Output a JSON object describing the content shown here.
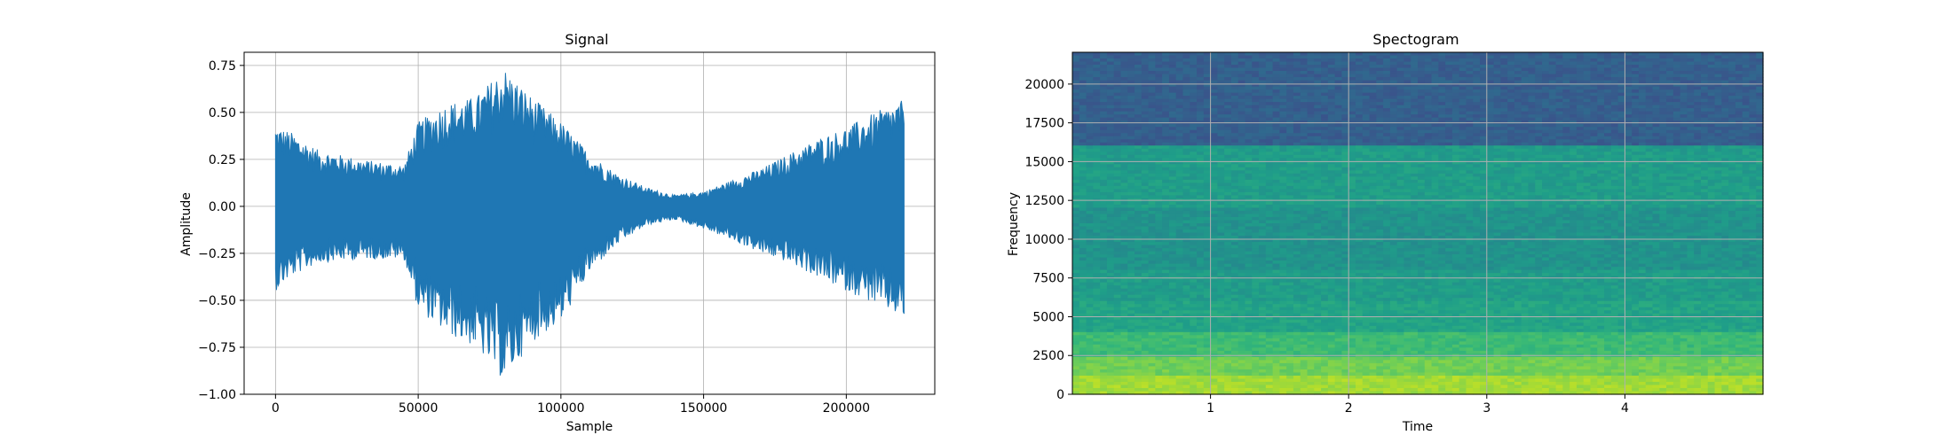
{
  "chart_data": [
    {
      "type": "line",
      "title": "Signal",
      "xlabel": "Sample",
      "ylabel": "Amplitude",
      "xlim": [
        -11000,
        231000
      ],
      "ylim": [
        -1.0,
        0.82
      ],
      "xticks": [
        0,
        50000,
        100000,
        150000,
        200000
      ],
      "xtick_labels": [
        "0",
        "50000",
        "100000",
        "150000",
        "200000"
      ],
      "yticks": [
        -1.0,
        -0.75,
        -0.5,
        -0.25,
        0.0,
        0.25,
        0.5,
        0.75
      ],
      "ytick_labels": [
        "−1.00",
        "−0.75",
        "−0.50",
        "−0.25",
        "0.00",
        "0.25",
        "0.50",
        "0.75"
      ],
      "grid": true,
      "color": "#1f77b4",
      "n_samples": 220500,
      "envelope": {
        "x": [
          0,
          5000,
          15000,
          30000,
          45000,
          50000,
          60000,
          70000,
          80000,
          90000,
          100000,
          110000,
          120000,
          130000,
          140000,
          150000,
          160000,
          170000,
          180000,
          190000,
          200000,
          210000,
          220500
        ],
        "upper": [
          0.43,
          0.4,
          0.3,
          0.25,
          0.22,
          0.45,
          0.55,
          0.58,
          0.74,
          0.58,
          0.45,
          0.28,
          0.17,
          0.1,
          0.06,
          0.08,
          0.14,
          0.2,
          0.28,
          0.36,
          0.42,
          0.5,
          0.57
        ],
        "lower": [
          -0.45,
          -0.38,
          -0.3,
          -0.28,
          -0.28,
          -0.55,
          -0.68,
          -0.75,
          -0.93,
          -0.72,
          -0.62,
          -0.35,
          -0.2,
          -0.1,
          -0.07,
          -0.12,
          -0.18,
          -0.25,
          -0.3,
          -0.38,
          -0.45,
          -0.52,
          -0.6
        ]
      }
    },
    {
      "type": "heatmap",
      "title": "Spectogram",
      "xlabel": "Time",
      "ylabel": "Frequency",
      "xlim": [
        0,
        5.0
      ],
      "ylim": [
        0,
        22050
      ],
      "xticks": [
        1,
        2,
        3,
        4
      ],
      "xtick_labels": [
        "1",
        "2",
        "3",
        "4"
      ],
      "yticks": [
        0,
        2500,
        5000,
        7500,
        10000,
        12500,
        15000,
        17500,
        20000
      ],
      "ytick_labels": [
        "0",
        "2500",
        "5000",
        "7500",
        "10000",
        "12500",
        "15000",
        "17500",
        "20000"
      ],
      "grid": true,
      "colormap": "viridis",
      "frequency_bands": [
        {
          "from": 0,
          "to": 1200,
          "level": 0.86
        },
        {
          "from": 1200,
          "to": 2500,
          "level": 0.78
        },
        {
          "from": 2500,
          "to": 4000,
          "level": 0.68
        },
        {
          "from": 4000,
          "to": 6000,
          "level": 0.58
        },
        {
          "from": 6000,
          "to": 8000,
          "level": 0.55
        },
        {
          "from": 8000,
          "to": 12000,
          "level": 0.51
        },
        {
          "from": 12000,
          "to": 16000,
          "level": 0.55
        },
        {
          "from": 16000,
          "to": 22050,
          "level": 0.3
        }
      ]
    }
  ]
}
